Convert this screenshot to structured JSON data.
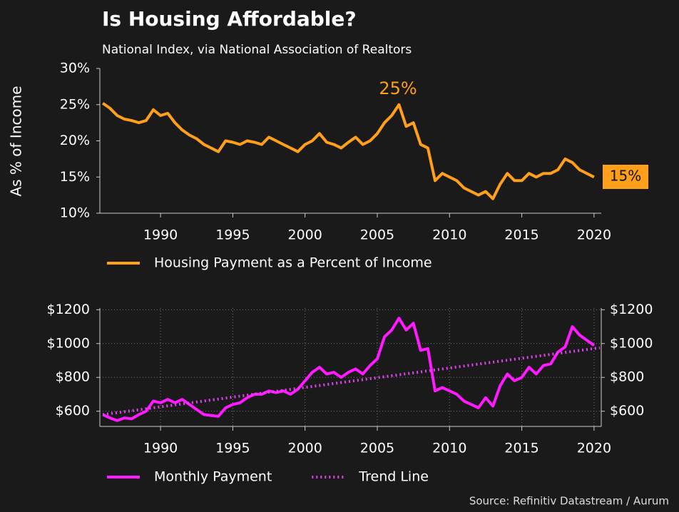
{
  "title": "Is Housing Affordable?",
  "subtitle": "National Index, via National Association of Realtors",
  "source": "Source: Refinitiv Datastream / Aurum",
  "chart_data": [
    {
      "type": "line",
      "y_label": "As % of Income",
      "x": [
        1986,
        1986.5,
        1987,
        1987.5,
        1988,
        1988.5,
        1989,
        1989.5,
        1990,
        1990.5,
        1991,
        1991.5,
        1992,
        1992.5,
        1993,
        1993.5,
        1994,
        1994.5,
        1995,
        1995.5,
        1996,
        1996.5,
        1997,
        1997.5,
        1998,
        1998.5,
        1999,
        1999.5,
        2000,
        2000.5,
        2001,
        2001.5,
        2002,
        2002.5,
        2003,
        2003.5,
        2004,
        2004.5,
        2005,
        2005.5,
        2006,
        2006.5,
        2007,
        2007.5,
        2008,
        2008.5,
        2009,
        2009.5,
        2010,
        2010.5,
        2011,
        2011.5,
        2012,
        2012.5,
        2013,
        2013.5,
        2014,
        2014.5,
        2015,
        2015.5,
        2016,
        2016.5,
        2017,
        2017.5,
        2018,
        2018.5,
        2019,
        2019.5,
        2020
      ],
      "series": [
        {
          "name": "Housing Payment as a Percent of Income",
          "color": "#ff9f1a",
          "values": [
            25.2,
            24.5,
            23.5,
            23.0,
            22.8,
            22.5,
            22.8,
            24.3,
            23.5,
            23.8,
            22.5,
            21.5,
            20.8,
            20.3,
            19.5,
            19.0,
            18.5,
            20.0,
            19.8,
            19.5,
            20.0,
            19.8,
            19.5,
            20.5,
            20.0,
            19.5,
            19.0,
            18.5,
            19.5,
            20.0,
            21.0,
            19.8,
            19.5,
            19.0,
            19.8,
            20.5,
            19.5,
            20.0,
            21.0,
            22.5,
            23.5,
            25.0,
            22.0,
            22.5,
            19.5,
            19.0,
            14.5,
            15.5,
            15.0,
            14.5,
            13.5,
            13.0,
            12.5,
            13.0,
            12.0,
            14.0,
            15.5,
            14.5,
            14.5,
            15.5,
            15.0,
            15.5,
            15.5,
            16.0,
            17.5,
            17.0,
            16.0,
            15.5,
            15.0
          ]
        }
      ],
      "xlim": [
        1985.8,
        2020.5
      ],
      "xticks": [
        1990,
        1995,
        2000,
        2005,
        2010,
        2015,
        2020
      ],
      "ylim": [
        10,
        30
      ],
      "yticks": [
        {
          "value": 10,
          "label": "10%"
        },
        {
          "value": 15,
          "label": "15%"
        },
        {
          "value": 20,
          "label": "20%"
        },
        {
          "value": 25,
          "label": "25%"
        },
        {
          "value": 30,
          "label": "30%"
        }
      ],
      "grid": false,
      "annotations": [
        "25%",
        "15%"
      ]
    },
    {
      "type": "line",
      "x": [
        1986,
        1986.5,
        1987,
        1987.5,
        1988,
        1988.5,
        1989,
        1989.5,
        1990,
        1990.5,
        1991,
        1991.5,
        1992,
        1992.5,
        1993,
        1993.5,
        1994,
        1994.5,
        1995,
        1995.5,
        1996,
        1996.5,
        1997,
        1997.5,
        1998,
        1998.5,
        1999,
        1999.5,
        2000,
        2000.5,
        2001,
        2001.5,
        2002,
        2002.5,
        2003,
        2003.5,
        2004,
        2004.5,
        2005,
        2005.5,
        2006,
        2006.5,
        2007,
        2007.5,
        2008,
        2008.5,
        2009,
        2009.5,
        2010,
        2010.5,
        2011,
        2011.5,
        2012,
        2012.5,
        2013,
        2013.5,
        2014,
        2014.5,
        2015,
        2015.5,
        2016,
        2016.5,
        2017,
        2017.5,
        2018,
        2018.5,
        2019,
        2019.5,
        2020
      ],
      "series": [
        {
          "name": "Monthly Payment",
          "color": "#ff1aff",
          "values": [
            580,
            560,
            545,
            560,
            555,
            580,
            600,
            660,
            650,
            670,
            650,
            670,
            640,
            610,
            580,
            575,
            570,
            620,
            640,
            650,
            680,
            700,
            700,
            720,
            710,
            720,
            700,
            730,
            780,
            830,
            860,
            820,
            830,
            800,
            830,
            850,
            820,
            870,
            910,
            1040,
            1080,
            1150,
            1080,
            1120,
            960,
            970,
            720,
            740,
            720,
            700,
            660,
            640,
            620,
            680,
            630,
            750,
            820,
            780,
            800,
            860,
            820,
            870,
            880,
            950,
            980,
            1100,
            1050,
            1020,
            990
          ]
        },
        {
          "name": "Trend Line",
          "color": "#e040f0",
          "dash": "dotted",
          "x": [
            1986,
            2020.4
          ],
          "values": [
            580,
            975
          ]
        }
      ],
      "xlim": [
        1985.8,
        2020.5
      ],
      "xticks": [
        1990,
        1995,
        2000,
        2005,
        2010,
        2015,
        2020
      ],
      "ylim": [
        510,
        1210
      ],
      "yticks": [
        {
          "value": 600,
          "label": "$600"
        },
        {
          "value": 800,
          "label": "$800"
        },
        {
          "value": 1000,
          "label": "$1000"
        },
        {
          "value": 1200,
          "label": "$1200"
        }
      ],
      "y2lim": [
        510,
        1210
      ],
      "y2ticks": [
        {
          "value": 600,
          "label": "$600"
        },
        {
          "value": 800,
          "label": "$800"
        },
        {
          "value": 1000,
          "label": "$1000"
        },
        {
          "value": 1200,
          "label": "$1200"
        }
      ],
      "grid": true
    }
  ]
}
